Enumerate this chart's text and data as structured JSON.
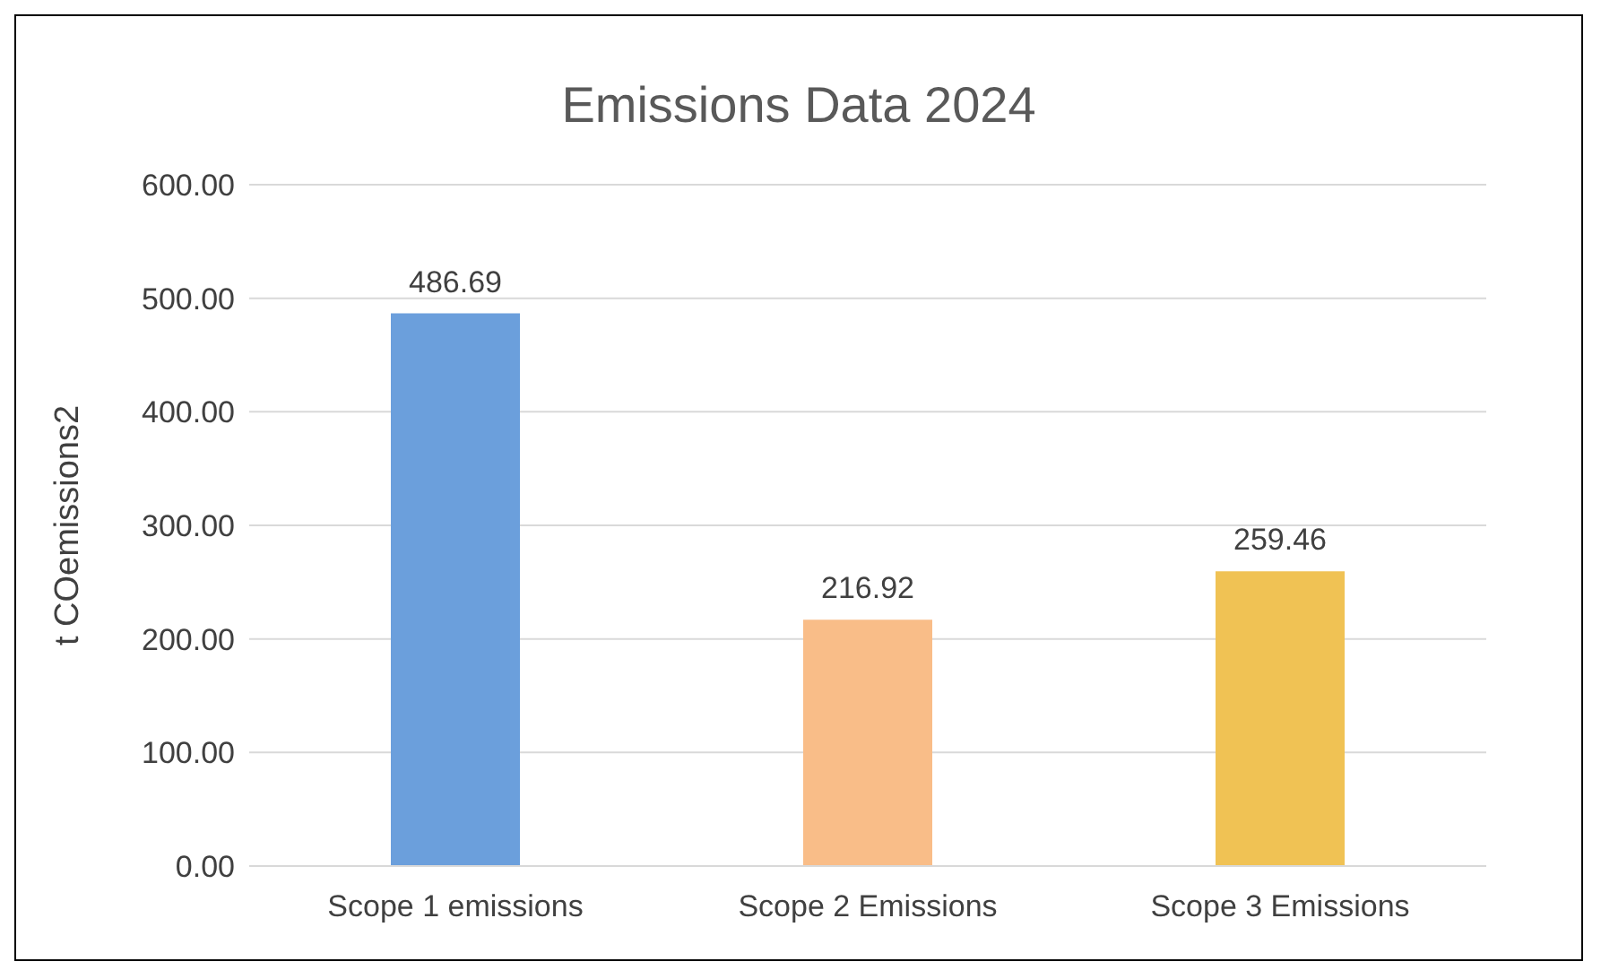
{
  "chart_data": {
    "type": "bar",
    "title": "Emissions Data 2024",
    "ylabel": "t COemissions2",
    "categories": [
      "Scope 1 emissions",
      "Scope 2 Emissions",
      "Scope 3 Emissions"
    ],
    "values": [
      486.69,
      216.92,
      259.46
    ],
    "colors": [
      "#6b9fdc",
      "#f9bd88",
      "#f0c254"
    ],
    "ylim": [
      0,
      600
    ],
    "yticks": [
      {
        "value": 0,
        "label": "0.00"
      },
      {
        "value": 100,
        "label": "100.00"
      },
      {
        "value": 200,
        "label": "200.00"
      },
      {
        "value": 300,
        "label": "300.00"
      },
      {
        "value": 400,
        "label": "400.00"
      },
      {
        "value": 500,
        "label": "500.00"
      },
      {
        "value": 600,
        "label": "600.00"
      }
    ],
    "grid": "y",
    "data_labels": true
  }
}
